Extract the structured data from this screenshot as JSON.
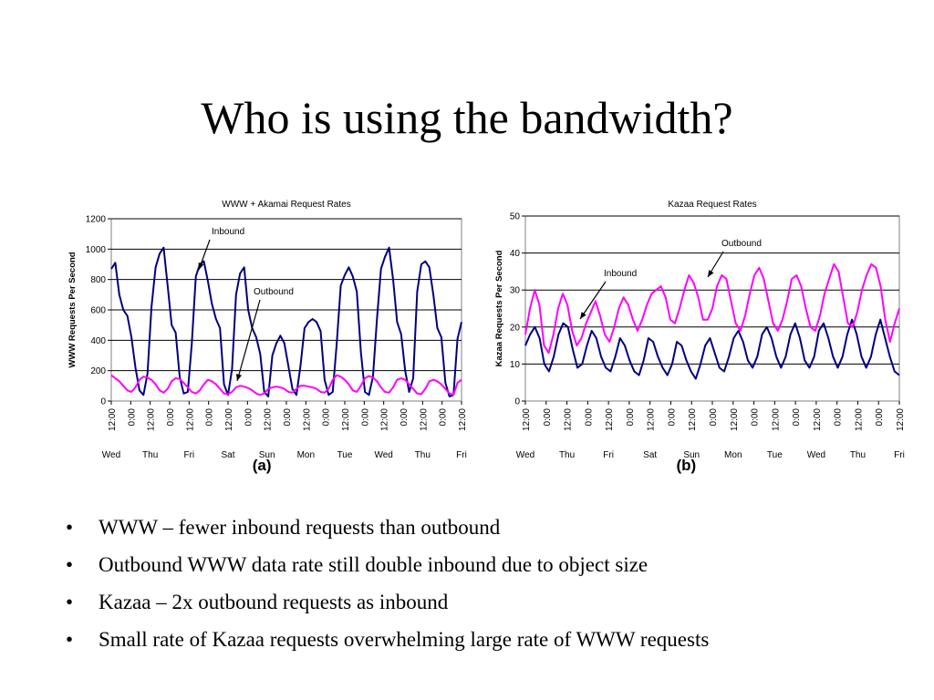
{
  "slide": {
    "title": "Who is using the bandwidth?",
    "bullet_symbol": "•",
    "bullets": [
      "WWW – fewer inbound requests than outbound",
      "Outbound WWW data rate still double inbound due to object size",
      "Kazaa – 2x outbound requests as inbound",
      "Small rate of Kazaa requests overwhelming large rate of WWW requests"
    ]
  },
  "chart_data": [
    {
      "type": "line",
      "title": "WWW + Akamai Request Rates",
      "ylabel": "WWW Requests Per Second",
      "panel_label": "(a)",
      "ylim": [
        0,
        1200
      ],
      "yticks": [
        "0",
        "200",
        "400",
        "600",
        "800",
        "1000",
        "1200"
      ],
      "xtick_times": [
        "12:00",
        "0:00",
        "12:00",
        "0:00",
        "12:00",
        "0:00",
        "12:00",
        "0:00",
        "12:00",
        "0:00",
        "12:00",
        "0:00",
        "12:00",
        "0:00",
        "12:00",
        "0:00",
        "12:00",
        "0:00",
        "12:00"
      ],
      "day_labels": [
        "Wed",
        "Thu",
        "Fri",
        "Sat",
        "Sun",
        "Mon",
        "Tue",
        "Wed",
        "Thu",
        "Fri"
      ],
      "grid": true,
      "series": [
        {
          "name": "Inbound",
          "color": "#000080",
          "values": [
            870,
            910,
            700,
            600,
            560,
            420,
            220,
            70,
            40,
            180,
            620,
            880,
            970,
            1010,
            760,
            500,
            450,
            160,
            50,
            60,
            380,
            820,
            900,
            920,
            790,
            640,
            540,
            480,
            110,
            40,
            210,
            700,
            840,
            880,
            600,
            480,
            420,
            310,
            60,
            30,
            300,
            380,
            430,
            380,
            230,
            80,
            40,
            230,
            480,
            520,
            540,
            520,
            460,
            140,
            40,
            60,
            380,
            760,
            830,
            880,
            820,
            720,
            320,
            60,
            40,
            160,
            540,
            870,
            950,
            1010,
            800,
            520,
            440,
            200,
            60,
            150,
            720,
            900,
            920,
            880,
            700,
            480,
            420,
            120,
            30,
            40,
            410,
            520
          ]
        },
        {
          "name": "Outbound",
          "color": "#ff00ff",
          "values": [
            170,
            150,
            130,
            100,
            70,
            60,
            90,
            140,
            160,
            155,
            140,
            110,
            70,
            55,
            80,
            130,
            150,
            145,
            120,
            90,
            60,
            50,
            70,
            110,
            140,
            130,
            110,
            80,
            50,
            45,
            60,
            90,
            100,
            95,
            85,
            70,
            50,
            40,
            50,
            80,
            90,
            95,
            90,
            80,
            60,
            55,
            80,
            100,
            100,
            95,
            90,
            80,
            60,
            55,
            80,
            140,
            170,
            160,
            140,
            110,
            70,
            60,
            100,
            150,
            165,
            155,
            130,
            90,
            60,
            55,
            90,
            140,
            150,
            140,
            110,
            80,
            50,
            45,
            80,
            130,
            140,
            130,
            110,
            80,
            50,
            40,
            120,
            140
          ]
        }
      ],
      "annotations": [
        "Inbound",
        "Outbound"
      ]
    },
    {
      "type": "line",
      "title": "Kazaa Request Rates",
      "ylabel": "Kazaa Requests Per Second",
      "panel_label": "(b)",
      "ylim": [
        0,
        50
      ],
      "yticks": [
        "0",
        "10",
        "20",
        "30",
        "40",
        "50"
      ],
      "xtick_times": [
        "12:00",
        "0:00",
        "12:00",
        "0:00",
        "12:00",
        "0:00",
        "12:00",
        "0:00",
        "12:00",
        "0:00",
        "12:00",
        "0:00",
        "12:00",
        "0:00",
        "12:00",
        "0:00",
        "12:00",
        "0:00",
        "12:00"
      ],
      "day_labels": [
        "Wed",
        "Thu",
        "Fri",
        "Sat",
        "Sun",
        "Mon",
        "Tue",
        "Wed",
        "Thu",
        "Fri"
      ],
      "grid": true,
      "series": [
        {
          "name": "Inbound",
          "color": "#000080",
          "values": [
            15,
            18,
            20,
            17,
            10,
            8,
            12,
            18,
            21,
            20,
            14,
            9,
            10,
            15,
            19,
            17,
            12,
            9,
            8,
            12,
            17,
            15,
            11,
            8,
            7,
            11,
            17,
            16,
            12,
            9,
            7,
            10,
            16,
            15,
            11,
            8,
            6,
            10,
            15,
            17,
            13,
            9,
            8,
            12,
            17,
            19,
            16,
            11,
            9,
            12,
            18,
            20,
            17,
            12,
            9,
            12,
            18,
            21,
            17,
            11,
            9,
            12,
            19,
            21,
            17,
            12,
            9,
            12,
            18,
            22,
            18,
            12,
            9,
            12,
            18,
            22,
            17,
            12,
            8,
            7
          ]
        },
        {
          "name": "Outbound",
          "color": "#ff00ff",
          "values": [
            18,
            25,
            30,
            26,
            15,
            13,
            18,
            25,
            29,
            26,
            19,
            15,
            17,
            21,
            24,
            27,
            23,
            18,
            16,
            20,
            25,
            28,
            26,
            22,
            19,
            22,
            26,
            29,
            30,
            31,
            28,
            22,
            21,
            25,
            30,
            34,
            32,
            28,
            22,
            22,
            25,
            31,
            34,
            33,
            27,
            21,
            19,
            23,
            29,
            34,
            36,
            33,
            27,
            21,
            19,
            22,
            27,
            33,
            34,
            31,
            25,
            20,
            19,
            23,
            29,
            33,
            37,
            35,
            28,
            21,
            20,
            24,
            30,
            34,
            37,
            36,
            31,
            22,
            16,
            21,
            25
          ]
        }
      ],
      "annotations": [
        "Outbound",
        "Inbound"
      ]
    }
  ]
}
